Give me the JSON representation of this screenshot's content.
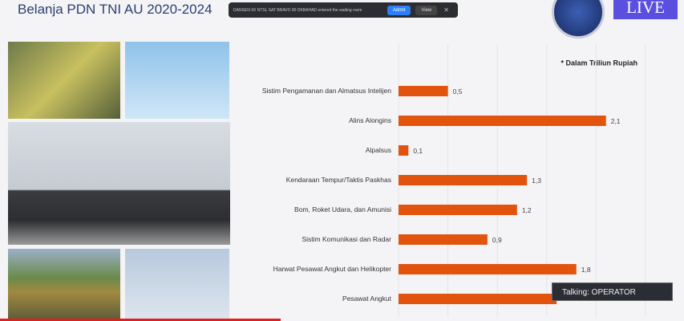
{
  "header": {
    "title": "Belanja PDN TNI AU 2020-2024"
  },
  "notification": {
    "text": "DANSEN 9X NTSL SAT BRAVO 90 DKBAHAD entered the waiting room",
    "admit": "Admit",
    "view": "View"
  },
  "live": "LIVE",
  "talking": "Talking: OPERATOR",
  "chart_data": {
    "type": "hbar",
    "annotation": "* Dalam Triliun Rupiah",
    "categories": [
      "Sistim Pengamanan dan Almatsus Intelijen",
      "Alins Alongins",
      "Alpalsus",
      "Kendaraan Tempur/Taktis Paskhas",
      "Bom, Roket Udara, dan Amunisi",
      "Sistim Komunikasi dan Radar",
      "Harwat Pesawat Angkut dan Helikopter",
      "Pesawat Angkut"
    ],
    "values": [
      0.5,
      2.1,
      0.1,
      1.3,
      1.2,
      0.9,
      1.8,
      1.6
    ],
    "value_labels": [
      "0,5",
      "2,1",
      "0,1",
      "1,3",
      "1,2",
      "0,9",
      "1,8",
      null
    ],
    "color": "#e2540e",
    "xlim": [
      0,
      2.5
    ],
    "xticks": [
      0,
      0.5,
      1,
      1.5,
      2,
      2.5
    ],
    "grid": true
  }
}
